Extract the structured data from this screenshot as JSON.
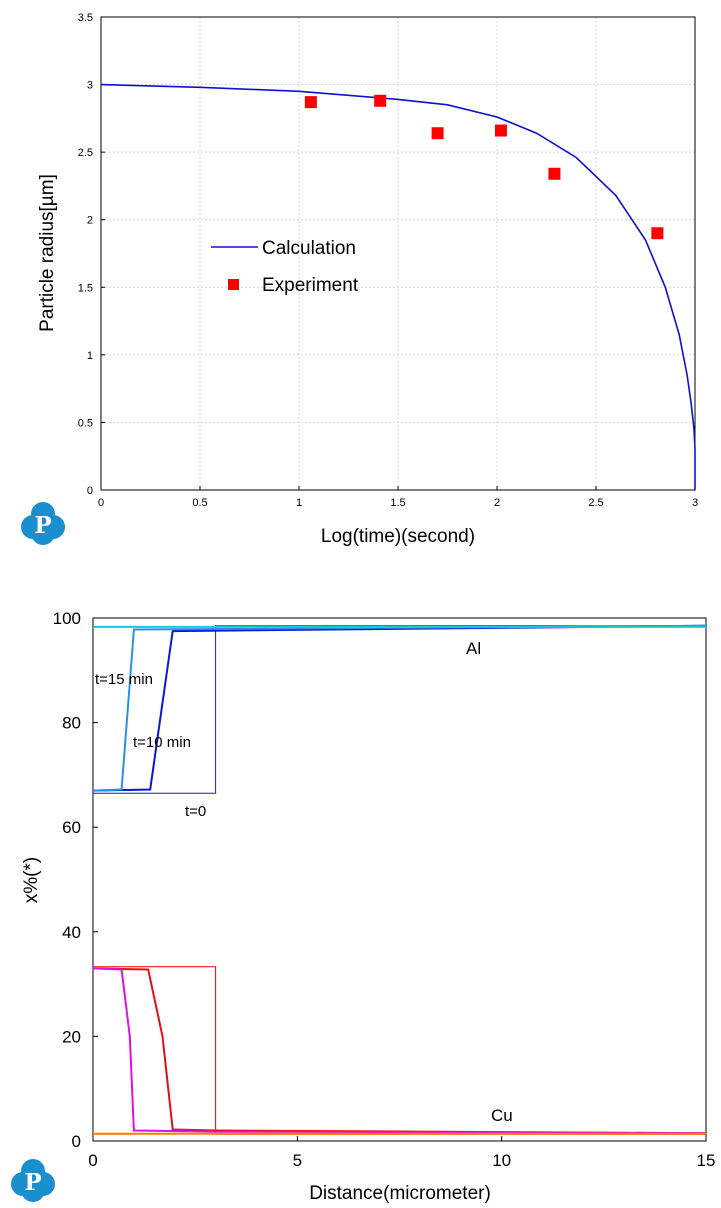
{
  "chart_data": [
    {
      "type": "line",
      "xlabel": "Log(time)(second)",
      "ylabel": "Particle radius[µm]",
      "xlim": [
        0,
        3
      ],
      "ylim": [
        0,
        3.5
      ],
      "xticks": [
        "0",
        "0.5",
        "1",
        "1.5",
        "2",
        "2.5",
        "3"
      ],
      "yticks": [
        "0",
        "0.5",
        "1",
        "1.5",
        "2",
        "2.5",
        "3",
        "3.5"
      ],
      "grid": true,
      "legend_position": "center-left",
      "series": [
        {
          "name": "Calculation",
          "kind": "line",
          "color": "#1010d0",
          "x": [
            0,
            0.5,
            1.0,
            1.5,
            1.75,
            2.0,
            2.2,
            2.4,
            2.6,
            2.75,
            2.85,
            2.92,
            2.96,
            2.98,
            2.995,
            3.0,
            3.0
          ],
          "y": [
            3.0,
            2.98,
            2.95,
            2.89,
            2.85,
            2.76,
            2.64,
            2.46,
            2.18,
            1.85,
            1.5,
            1.15,
            0.85,
            0.65,
            0.45,
            0.3,
            0.0
          ]
        },
        {
          "name": "Experiment",
          "kind": "scatter",
          "color": "#ff0000",
          "x": [
            1.06,
            1.41,
            1.7,
            2.02,
            2.29,
            2.81
          ],
          "y": [
            2.87,
            2.88,
            2.64,
            2.66,
            2.34,
            1.9
          ]
        }
      ]
    },
    {
      "type": "line",
      "xlabel": "Distance(micrometer)",
      "ylabel": "x%(*)",
      "xlim": [
        0,
        15
      ],
      "ylim": [
        0,
        100
      ],
      "xticks": [
        "0",
        "5",
        "10",
        "15"
      ],
      "yticks": [
        "0",
        "20",
        "40",
        "60",
        "80",
        "100"
      ],
      "grid": false,
      "annotations": [
        "Al",
        "Cu",
        "t=15 min",
        "t=10 min",
        "t=0"
      ],
      "series": [
        {
          "color": "#1a1ad8",
          "x": [
            0,
            3,
            3,
            15
          ],
          "y": [
            66.5,
            66.5,
            98.5,
            98.5
          ]
        },
        {
          "color": "#0b16d0",
          "x": [
            0,
            1.4,
            1.95,
            15
          ],
          "y": [
            67,
            67.2,
            97.5,
            98.5
          ]
        },
        {
          "color": "#2a90e8",
          "x": [
            0,
            0.7,
            1.0,
            15
          ],
          "y": [
            67,
            67.2,
            97.8,
            98.5
          ]
        },
        {
          "color": "#19c7d6",
          "x": [
            0,
            15
          ],
          "y": [
            98.3,
            98.3
          ]
        },
        {
          "color": "#ff0000",
          "x": [
            0,
            3,
            3,
            15
          ],
          "y": [
            33.3,
            33.3,
            1.3,
            1.3
          ]
        },
        {
          "color": "#e0101a",
          "x": [
            0,
            1.35,
            1.7,
            1.95,
            3,
            15
          ],
          "y": [
            33,
            32.8,
            20,
            2.2,
            2.0,
            1.5
          ]
        },
        {
          "color": "#e010e0",
          "x": [
            0,
            0.7,
            0.9,
            1.0,
            3,
            15
          ],
          "y": [
            33,
            32.8,
            20,
            2.0,
            1.8,
            1.5
          ]
        },
        {
          "color": "#ff7a00",
          "x": [
            0,
            15
          ],
          "y": [
            1.4,
            1.4
          ]
        }
      ]
    }
  ],
  "logo_top": "P",
  "logo_bottom": "P"
}
